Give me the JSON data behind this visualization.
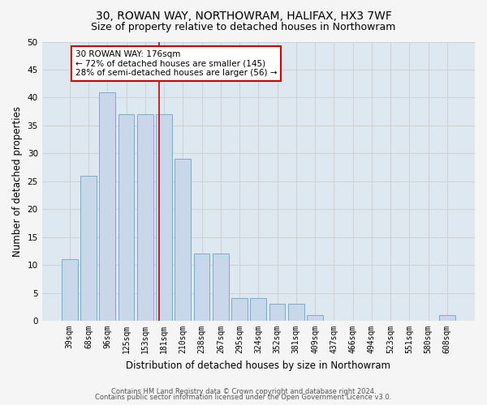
{
  "title": "30, ROWAN WAY, NORTHOWRAM, HALIFAX, HX3 7WF",
  "subtitle": "Size of property relative to detached houses in Northowram",
  "xlabel": "Distribution of detached houses by size in Northowram",
  "ylabel": "Number of detached properties",
  "categories": [
    "39sqm",
    "68sqm",
    "96sqm",
    "125sqm",
    "153sqm",
    "181sqm",
    "210sqm",
    "238sqm",
    "267sqm",
    "295sqm",
    "324sqm",
    "352sqm",
    "381sqm",
    "409sqm",
    "437sqm",
    "466sqm",
    "494sqm",
    "523sqm",
    "551sqm",
    "580sqm",
    "608sqm"
  ],
  "values": [
    11,
    26,
    41,
    37,
    37,
    37,
    29,
    12,
    12,
    4,
    4,
    3,
    3,
    1,
    0,
    0,
    0,
    0,
    0,
    0,
    1
  ],
  "bar_color": "#c8d8ea",
  "bar_edge_color": "#7aaacb",
  "annotation_line_label": "30 ROWAN WAY: 176sqm",
  "annotation_text_line2": "← 72% of detached houses are smaller (145)",
  "annotation_text_line3": "28% of semi-detached houses are larger (56) →",
  "annotation_box_color": "#ffffff",
  "annotation_box_edge_color": "#cc0000",
  "red_line_color": "#cc0000",
  "ylim": [
    0,
    50
  ],
  "yticks": [
    0,
    5,
    10,
    15,
    20,
    25,
    30,
    35,
    40,
    45,
    50
  ],
  "grid_color": "#cccccc",
  "bg_color": "#dde8f0",
  "fig_bg_color": "#f5f5f5",
  "footnote1": "Contains HM Land Registry data © Crown copyright and database right 2024.",
  "footnote2": "Contains public sector information licensed under the Open Government Licence v3.0.",
  "title_fontsize": 10,
  "subtitle_fontsize": 9,
  "tick_fontsize": 7,
  "ylabel_fontsize": 8.5,
  "xlabel_fontsize": 8.5,
  "footnote_fontsize": 6
}
